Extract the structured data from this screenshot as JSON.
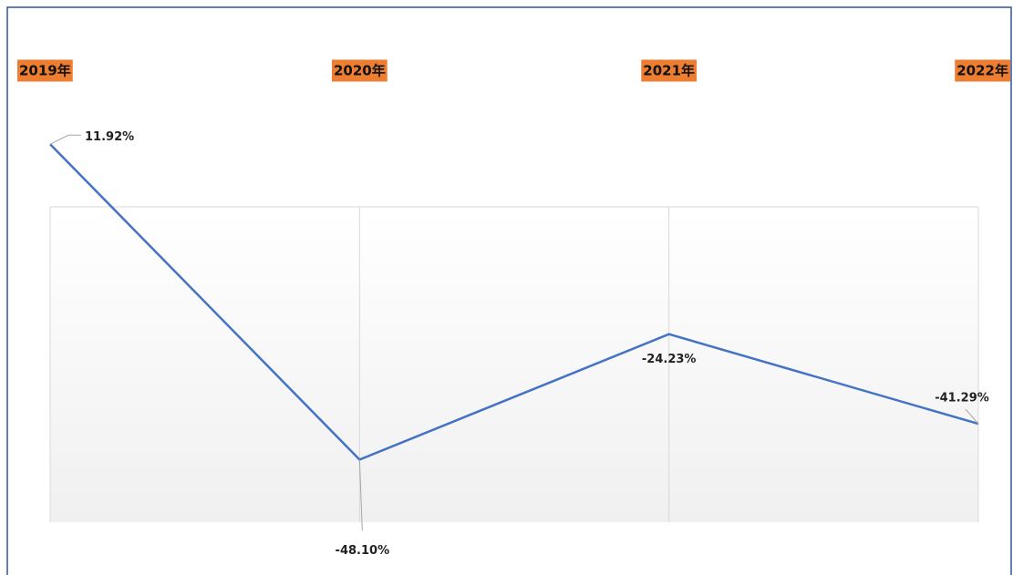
{
  "chart_data": {
    "type": "line",
    "categories": [
      "2019年",
      "2020年",
      "2021年",
      "2022年"
    ],
    "values": [
      11.92,
      -48.1,
      -24.23,
      -41.29
    ],
    "value_labels": [
      "11.92%",
      "-48.10%",
      "-24.23%",
      "-41.29%"
    ],
    "color": "#4472c4",
    "category_label_color": "#ed7d31",
    "ylim": [
      -60,
      0
    ],
    "grid": true
  }
}
